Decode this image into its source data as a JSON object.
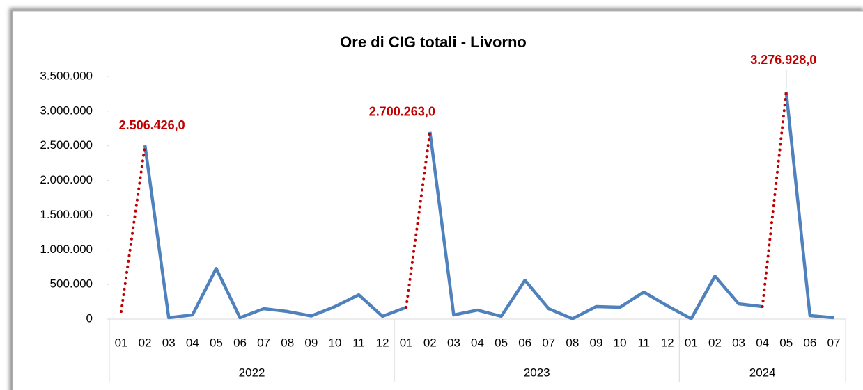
{
  "chart_data": {
    "type": "line",
    "title": "Ore di CIG totali  - Livorno",
    "categories": [
      "01",
      "02",
      "03",
      "04",
      "05",
      "06",
      "07",
      "08",
      "09",
      "10",
      "11",
      "12",
      "01",
      "02",
      "03",
      "04",
      "05",
      "06",
      "07",
      "08",
      "09",
      "10",
      "11",
      "12",
      "01",
      "02",
      "03",
      "04",
      "05",
      "06",
      "07"
    ],
    "groups": [
      {
        "label": "2022",
        "span": 12
      },
      {
        "label": "2023",
        "span": 12
      },
      {
        "label": "2024",
        "span": 7
      }
    ],
    "series": [
      {
        "name": "Ore di CIG totali",
        "color": "#4f81bd",
        "values": [
          110000,
          2506426,
          20000,
          60000,
          730000,
          20000,
          150000,
          110000,
          45000,
          180000,
          350000,
          40000,
          170000,
          2700263,
          60000,
          130000,
          40000,
          560000,
          150000,
          5000,
          180000,
          170000,
          390000,
          190000,
          5000,
          620000,
          220000,
          180000,
          3276928,
          50000,
          20000
        ],
        "value_labels": [
          null,
          "2.506.426,0",
          null,
          null,
          null,
          null,
          null,
          null,
          null,
          null,
          null,
          null,
          null,
          "2.700.263,0",
          null,
          null,
          null,
          null,
          null,
          null,
          null,
          null,
          null,
          null,
          null,
          null,
          null,
          null,
          "3.276.928,0",
          null,
          null
        ],
        "dotted_segments_to": [
          1,
          13,
          28
        ],
        "dotted_color": "#c00000"
      }
    ],
    "ylim": [
      0,
      3500000
    ],
    "yticks": [
      0,
      {
        "value": 500000,
        "label": "500.000"
      },
      {
        "value": 1000000,
        "label": "1.000.000"
      },
      {
        "value": 1500000,
        "label": "1.500.000"
      },
      {
        "value": 2000000,
        "label": "2.000.000"
      },
      {
        "value": 2500000,
        "label": "2.500.000"
      },
      {
        "value": 3000000,
        "label": "3.000.000"
      },
      {
        "value": 3500000,
        "label": "3.500.000"
      }
    ],
    "label_color": "#c00000"
  }
}
